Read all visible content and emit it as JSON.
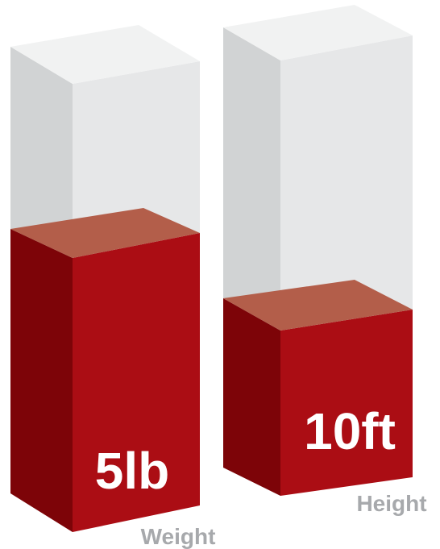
{
  "chart_data": {
    "type": "bar",
    "style": "3d-glass-column",
    "categories": [
      "Weight",
      "Height"
    ],
    "data_labels": [
      "5lb",
      "10ft"
    ],
    "fill_fractions": [
      0.55,
      0.3
    ],
    "colors": {
      "fill_front": "#ab0d14",
      "fill_side": "#7d0408",
      "fill_top": "#b35e4a",
      "glass_front": "#e6e7e8",
      "glass_side": "#d1d3d4",
      "glass_top": "#f1f2f2",
      "category_text": "#a7a9ac",
      "value_text": "#ffffff"
    }
  }
}
